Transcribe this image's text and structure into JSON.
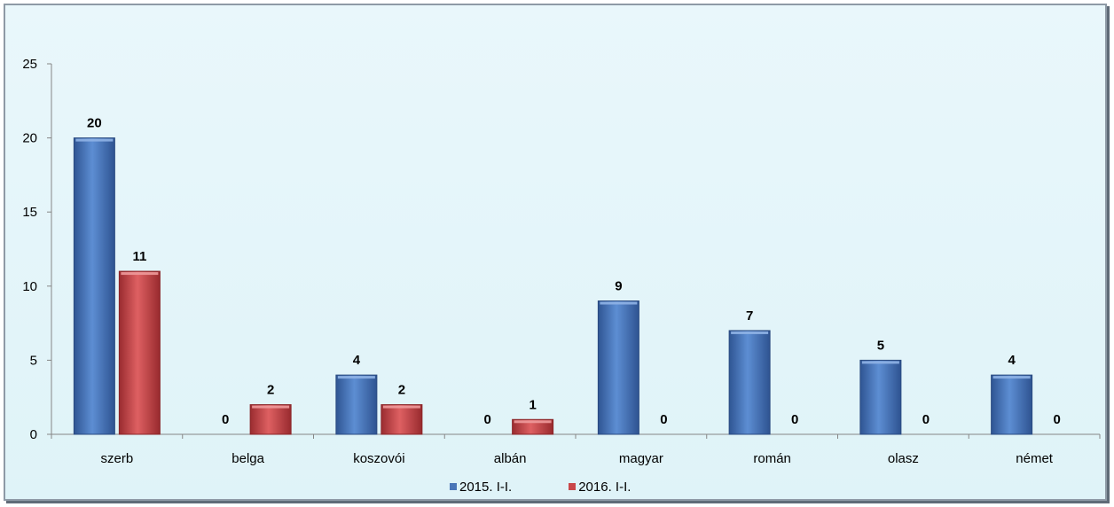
{
  "chart_data": {
    "type": "bar",
    "categories": [
      "szerb",
      "belga",
      "koszovói",
      "albán",
      "magyar",
      "román",
      "olasz",
      "német"
    ],
    "series": [
      {
        "name": "2015. I-I.",
        "values": [
          20,
          0,
          4,
          0,
          9,
          7,
          5,
          4
        ],
        "color": "#4a76b8"
      },
      {
        "name": "2016. I-I.",
        "values": [
          11,
          2,
          2,
          1,
          0,
          0,
          0,
          0
        ],
        "color": "#c9474a"
      }
    ],
    "y_ticks": [
      "0",
      "5",
      "10",
      "15",
      "20",
      "25"
    ],
    "ylim": [
      0,
      25
    ],
    "grid": false,
    "legend_position": "bottom",
    "data_labels": true
  }
}
